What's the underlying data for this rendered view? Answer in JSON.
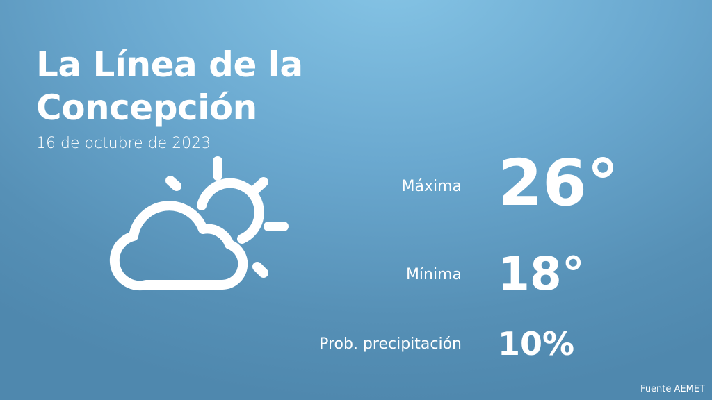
{
  "city": "La Línea de la Concepción",
  "date": "16 de octubre de 2023",
  "icon": "partly-cloudy-icon",
  "max": {
    "label": "Máxima",
    "value": "26°"
  },
  "min": {
    "label": "Mínima",
    "value": "18°"
  },
  "precip": {
    "label": "Prob. precipitación",
    "value": "10%"
  },
  "source": "Fuente AEMET"
}
